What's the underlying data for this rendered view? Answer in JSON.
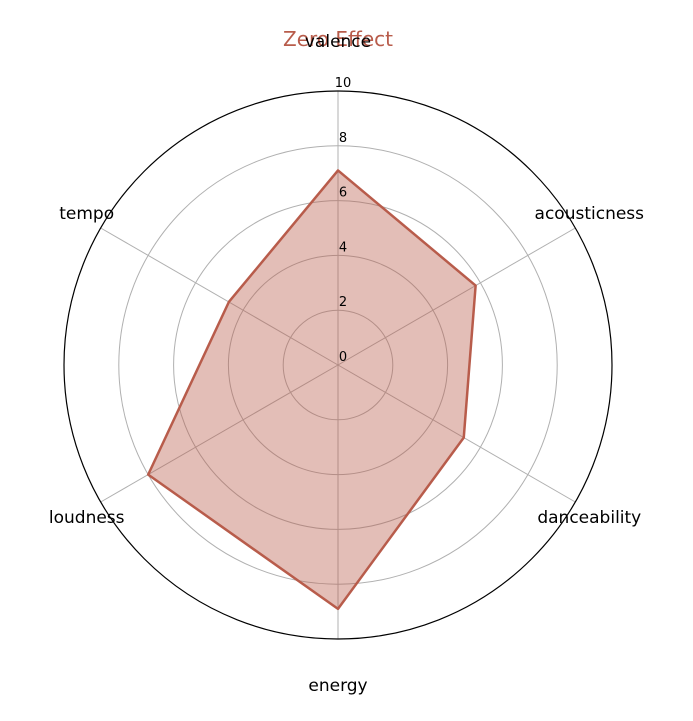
{
  "chart_data": {
    "type": "radar",
    "title": "Zero Effect",
    "categories": [
      "valence",
      "acousticness",
      "danceability",
      "energy",
      "loudness",
      "tempo"
    ],
    "series": [
      {
        "values": [
          7.1,
          5.8,
          5.3,
          8.9,
          8.0,
          4.6
        ]
      }
    ],
    "rlim": [
      0,
      10
    ],
    "rticks": [
      "0",
      "2",
      "4",
      "6",
      "8",
      "10"
    ],
    "grid": true,
    "colors": {
      "series": "#b85c4b",
      "fill": "rgba(184,92,75,0.4)",
      "title": "#b85c4b",
      "grid": "#b0b0b0",
      "frame": "#000000"
    }
  }
}
